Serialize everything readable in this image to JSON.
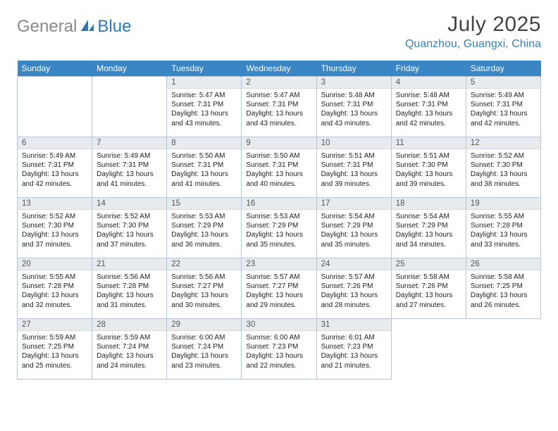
{
  "logo": {
    "gray": "General",
    "blue": "Blue"
  },
  "title": "July 2025",
  "location": "Quanzhou, Guangxi, China",
  "calendar": {
    "type": "table",
    "header_bg": "#3a86c4",
    "header_fg": "#ffffff",
    "daynum_bg": "#e8ebed",
    "border_color": "#b7c5d4",
    "columns": [
      "Sunday",
      "Monday",
      "Tuesday",
      "Wednesday",
      "Thursday",
      "Friday",
      "Saturday"
    ],
    "first_day_col": 2,
    "num_days": 31,
    "days": {
      "1": {
        "sr": "5:47 AM",
        "ss": "7:31 PM",
        "dl": "13 hours and 43 minutes."
      },
      "2": {
        "sr": "5:47 AM",
        "ss": "7:31 PM",
        "dl": "13 hours and 43 minutes."
      },
      "3": {
        "sr": "5:48 AM",
        "ss": "7:31 PM",
        "dl": "13 hours and 43 minutes."
      },
      "4": {
        "sr": "5:48 AM",
        "ss": "7:31 PM",
        "dl": "13 hours and 42 minutes."
      },
      "5": {
        "sr": "5:49 AM",
        "ss": "7:31 PM",
        "dl": "13 hours and 42 minutes."
      },
      "6": {
        "sr": "5:49 AM",
        "ss": "7:31 PM",
        "dl": "13 hours and 42 minutes."
      },
      "7": {
        "sr": "5:49 AM",
        "ss": "7:31 PM",
        "dl": "13 hours and 41 minutes."
      },
      "8": {
        "sr": "5:50 AM",
        "ss": "7:31 PM",
        "dl": "13 hours and 41 minutes."
      },
      "9": {
        "sr": "5:50 AM",
        "ss": "7:31 PM",
        "dl": "13 hours and 40 minutes."
      },
      "10": {
        "sr": "5:51 AM",
        "ss": "7:31 PM",
        "dl": "13 hours and 39 minutes."
      },
      "11": {
        "sr": "5:51 AM",
        "ss": "7:30 PM",
        "dl": "13 hours and 39 minutes."
      },
      "12": {
        "sr": "5:52 AM",
        "ss": "7:30 PM",
        "dl": "13 hours and 38 minutes."
      },
      "13": {
        "sr": "5:52 AM",
        "ss": "7:30 PM",
        "dl": "13 hours and 37 minutes."
      },
      "14": {
        "sr": "5:52 AM",
        "ss": "7:30 PM",
        "dl": "13 hours and 37 minutes."
      },
      "15": {
        "sr": "5:53 AM",
        "ss": "7:29 PM",
        "dl": "13 hours and 36 minutes."
      },
      "16": {
        "sr": "5:53 AM",
        "ss": "7:29 PM",
        "dl": "13 hours and 35 minutes."
      },
      "17": {
        "sr": "5:54 AM",
        "ss": "7:29 PM",
        "dl": "13 hours and 35 minutes."
      },
      "18": {
        "sr": "5:54 AM",
        "ss": "7:29 PM",
        "dl": "13 hours and 34 minutes."
      },
      "19": {
        "sr": "5:55 AM",
        "ss": "7:28 PM",
        "dl": "13 hours and 33 minutes."
      },
      "20": {
        "sr": "5:55 AM",
        "ss": "7:28 PM",
        "dl": "13 hours and 32 minutes."
      },
      "21": {
        "sr": "5:56 AM",
        "ss": "7:28 PM",
        "dl": "13 hours and 31 minutes."
      },
      "22": {
        "sr": "5:56 AM",
        "ss": "7:27 PM",
        "dl": "13 hours and 30 minutes."
      },
      "23": {
        "sr": "5:57 AM",
        "ss": "7:27 PM",
        "dl": "13 hours and 29 minutes."
      },
      "24": {
        "sr": "5:57 AM",
        "ss": "7:26 PM",
        "dl": "13 hours and 28 minutes."
      },
      "25": {
        "sr": "5:58 AM",
        "ss": "7:26 PM",
        "dl": "13 hours and 27 minutes."
      },
      "26": {
        "sr": "5:58 AM",
        "ss": "7:25 PM",
        "dl": "13 hours and 26 minutes."
      },
      "27": {
        "sr": "5:59 AM",
        "ss": "7:25 PM",
        "dl": "13 hours and 25 minutes."
      },
      "28": {
        "sr": "5:59 AM",
        "ss": "7:24 PM",
        "dl": "13 hours and 24 minutes."
      },
      "29": {
        "sr": "6:00 AM",
        "ss": "7:24 PM",
        "dl": "13 hours and 23 minutes."
      },
      "30": {
        "sr": "6:00 AM",
        "ss": "7:23 PM",
        "dl": "13 hours and 22 minutes."
      },
      "31": {
        "sr": "6:01 AM",
        "ss": "7:23 PM",
        "dl": "13 hours and 21 minutes."
      }
    },
    "labels": {
      "sunrise": "Sunrise:",
      "sunset": "Sunset:",
      "daylight": "Daylight:"
    }
  }
}
